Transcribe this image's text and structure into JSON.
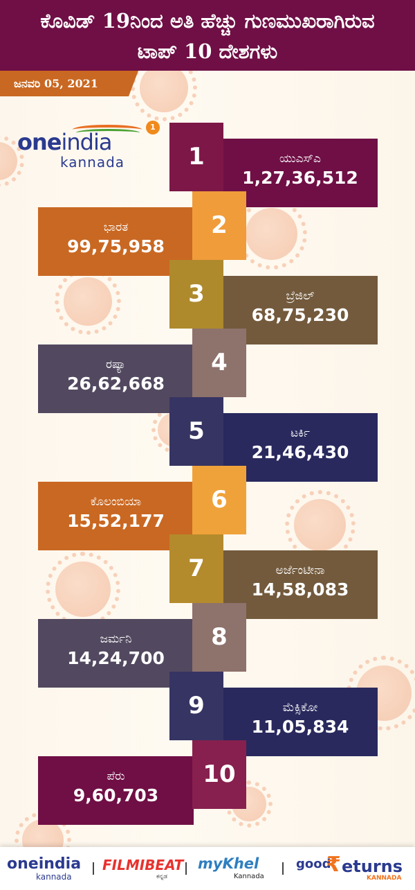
{
  "header": {
    "title_line1": "ಕೊವಿಡ್ 19ನಿಂದ ಅತಿ ಹೆಚ್ಚು ಗುಣಮುಖರಾಗಿರುವ",
    "title_line2": "ಟಾಪ್ 10 ದೇಶಗಳು"
  },
  "date": "ಜನವರಿ 05, 2021",
  "brand": {
    "name_bold": "one",
    "name_light": "india",
    "sub": "kannada",
    "badge": "1"
  },
  "colors": {
    "header_bg": "#6f0f45",
    "date_bg": "#c96822",
    "background": "#fdf8ef"
  },
  "rankings": [
    {
      "rank": "1",
      "country": "ಯುಎಸ್‌ಎ",
      "recovered": "1,27,36,512",
      "square_color": "#7d1747",
      "bar_color": "#6f0f45"
    },
    {
      "rank": "2",
      "country": "ಭಾರತ",
      "recovered": "99,75,958",
      "square_color": "#f09c3b",
      "bar_color": "#c96822"
    },
    {
      "rank": "3",
      "country": "ಬ್ರೆಜಿಲ್",
      "recovered": "68,75,230",
      "square_color": "#ae8a2d",
      "bar_color": "#735a3c"
    },
    {
      "rank": "4",
      "country": "ರಷ್ಯಾ",
      "recovered": "26,62,668",
      "square_color": "#8e726c",
      "bar_color": "#524960"
    },
    {
      "rank": "5",
      "country": "ಟರ್ಕಿ",
      "recovered": "21,46,430",
      "square_color": "#363463",
      "bar_color": "#29295e"
    },
    {
      "rank": "6",
      "country": "ಕೊಲಂಬಿಯಾ",
      "recovered": "15,52,177",
      "square_color": "#f0a23a",
      "bar_color": "#c96822"
    },
    {
      "rank": "7",
      "country": "ಅರ್ಜೆಂಟೀನಾ",
      "recovered": "14,58,083",
      "square_color": "#b48b2c",
      "bar_color": "#735a3c"
    },
    {
      "rank": "8",
      "country": "ಜರ್ಮನಿ",
      "recovered": "14,24,700",
      "square_color": "#8e726c",
      "bar_color": "#524960"
    },
    {
      "rank": "9",
      "country": "ಮೆಕ್ಸಿಕೋ",
      "recovered": "11,05,834",
      "square_color": "#363463",
      "bar_color": "#29295e"
    },
    {
      "rank": "10",
      "country": "ಪೆರು",
      "recovered": "9,60,703",
      "square_color": "#87204e",
      "bar_color": "#6f0f45"
    }
  ],
  "footer": {
    "logos": [
      {
        "name": "oneindia",
        "sub": "kannada"
      },
      {
        "name": "FILMIBEAT",
        "sub": "ಕನ್ನಡ"
      },
      {
        "name": "myKhel",
        "sub": "Kannada"
      },
      {
        "name": "goodReturns",
        "prefix": "good",
        "rupee": "₹",
        "suffix": "eturns",
        "sub": "KANNADA"
      }
    ],
    "separator": "|"
  }
}
